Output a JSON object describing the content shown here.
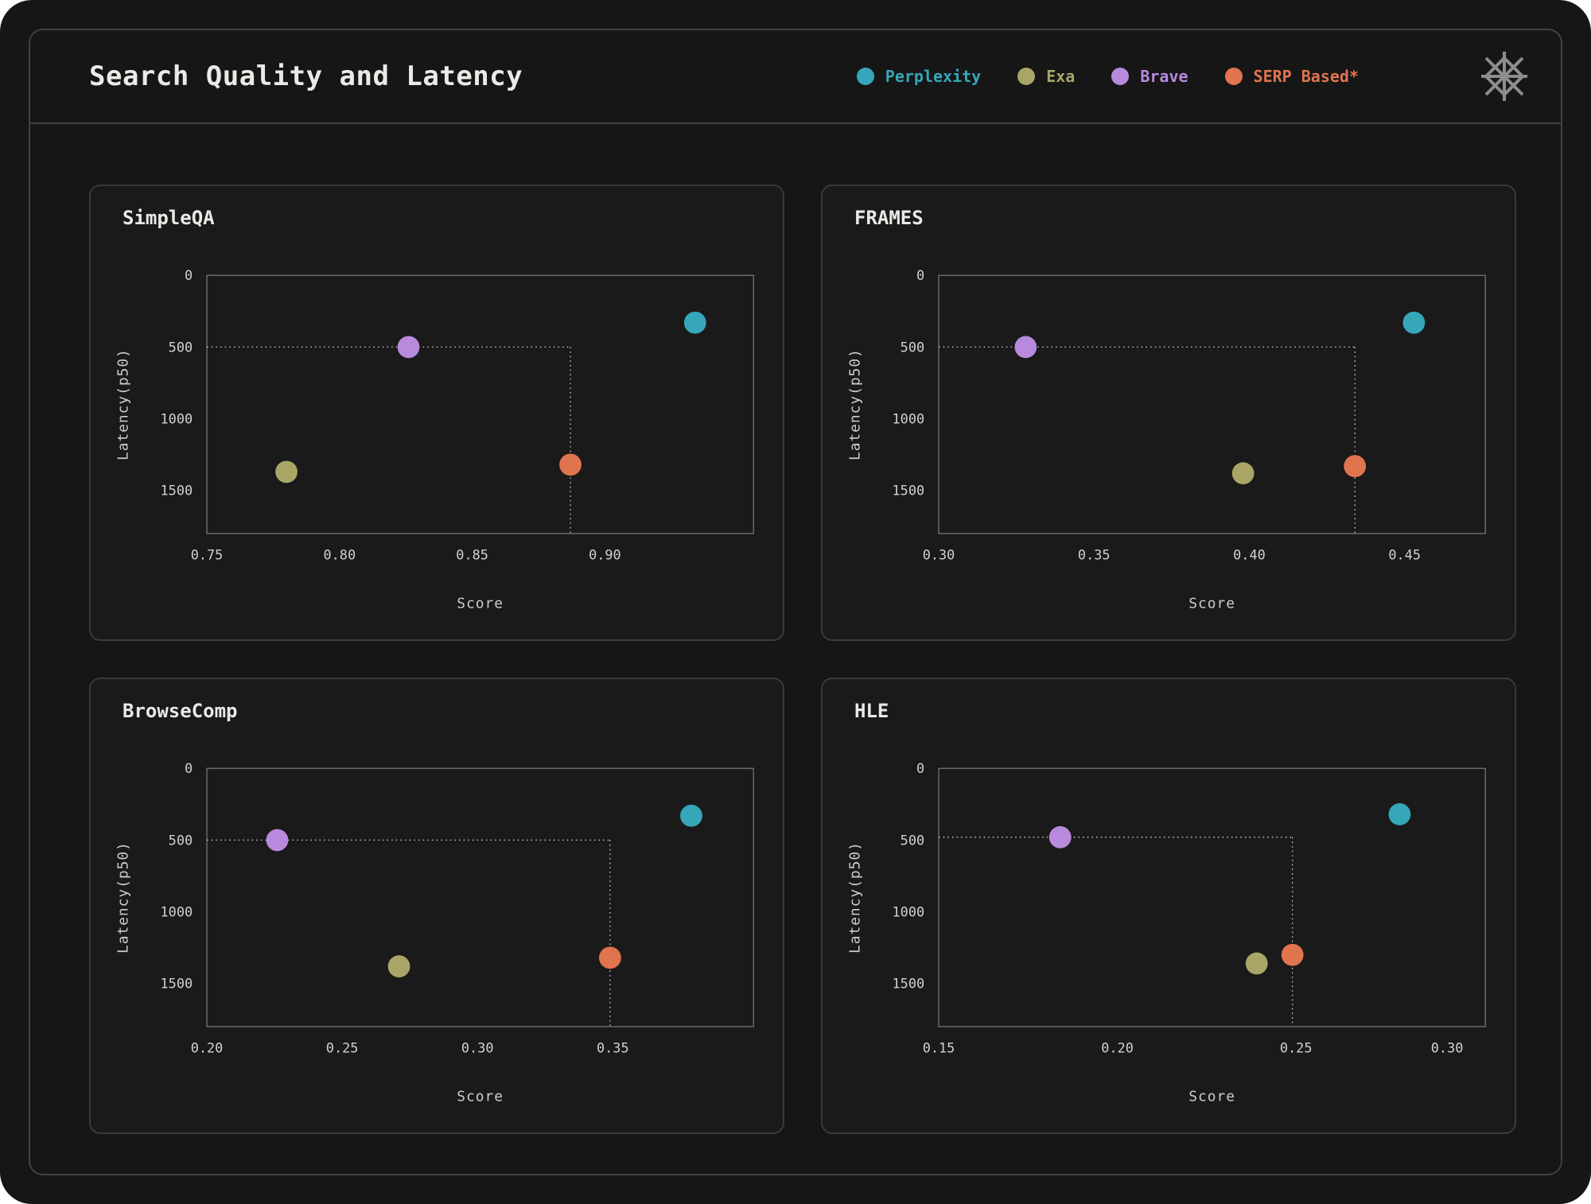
{
  "header": {
    "title": "Search Quality and Latency",
    "legend": [
      {
        "label": "Perplexity",
        "color": "#35a7b8"
      },
      {
        "label": "Exa",
        "color": "#a9a566"
      },
      {
        "label": "Brave",
        "color": "#b88ade"
      },
      {
        "label": "SERP Based*",
        "color": "#e0744f"
      }
    ],
    "logo_icon": "asterisk-burst-icon"
  },
  "colors": {
    "page_background": "#161616",
    "card_background": "#1a1a1a",
    "border": "#414141",
    "text": "#eceae6",
    "tick_text": "#d3d1cd",
    "crosshair": "#e8e8e8"
  },
  "chart_data": [
    {
      "type": "scatter",
      "title": "SimpleQA",
      "xlabel": "Score",
      "ylabel": "Latency(p50)",
      "xlim": [
        0.75,
        0.956
      ],
      "ylim": [
        0,
        1800
      ],
      "y_inverted": true,
      "x_ticks": [
        "0.75",
        "0.80",
        "0.85",
        "0.90"
      ],
      "y_ticks": [
        "0",
        "500",
        "1000",
        "1500"
      ],
      "series": [
        {
          "name": "Perplexity",
          "color": "#35a7b8",
          "points": [
            {
              "x": 0.934,
              "y": 330
            }
          ]
        },
        {
          "name": "Exa",
          "color": "#a9a566",
          "points": [
            {
              "x": 0.78,
              "y": 1370
            }
          ]
        },
        {
          "name": "Brave",
          "color": "#b88ade",
          "points": [
            {
              "x": 0.826,
              "y": 500
            }
          ]
        },
        {
          "name": "SERP Based*",
          "color": "#e0744f",
          "points": [
            {
              "x": 0.887,
              "y": 1320
            }
          ]
        }
      ],
      "crosshair": {
        "h_latency": 500,
        "v_score": 0.887
      },
      "grid": false,
      "legend_position": "header"
    },
    {
      "type": "scatter",
      "title": "FRAMES",
      "xlabel": "Score",
      "ylabel": "Latency(p50)",
      "xlim": [
        0.3,
        0.476
      ],
      "ylim": [
        0,
        1800
      ],
      "y_inverted": true,
      "x_ticks": [
        "0.30",
        "0.35",
        "0.40",
        "0.45"
      ],
      "y_ticks": [
        "0",
        "500",
        "1000",
        "1500"
      ],
      "series": [
        {
          "name": "Perplexity",
          "color": "#35a7b8",
          "points": [
            {
              "x": 0.453,
              "y": 330
            }
          ]
        },
        {
          "name": "Exa",
          "color": "#a9a566",
          "points": [
            {
              "x": 0.398,
              "y": 1380
            }
          ]
        },
        {
          "name": "Brave",
          "color": "#b88ade",
          "points": [
            {
              "x": 0.328,
              "y": 500
            }
          ]
        },
        {
          "name": "SERP Based*",
          "color": "#e0744f",
          "points": [
            {
              "x": 0.434,
              "y": 1330
            }
          ]
        }
      ],
      "crosshair": {
        "h_latency": 500,
        "v_score": 0.434
      },
      "grid": false,
      "legend_position": "header"
    },
    {
      "type": "scatter",
      "title": "BrowseComp",
      "xlabel": "Score",
      "ylabel": "Latency(p50)",
      "xlim": [
        0.2,
        0.402
      ],
      "ylim": [
        0,
        1800
      ],
      "y_inverted": true,
      "x_ticks": [
        "0.20",
        "0.25",
        "0.30",
        "0.35"
      ],
      "y_ticks": [
        "0",
        "500",
        "1000",
        "1500"
      ],
      "series": [
        {
          "name": "Perplexity",
          "color": "#35a7b8",
          "points": [
            {
              "x": 0.379,
              "y": 330
            }
          ]
        },
        {
          "name": "Exa",
          "color": "#a9a566",
          "points": [
            {
              "x": 0.271,
              "y": 1380
            }
          ]
        },
        {
          "name": "Brave",
          "color": "#b88ade",
          "points": [
            {
              "x": 0.226,
              "y": 500
            }
          ]
        },
        {
          "name": "SERP Based*",
          "color": "#e0744f",
          "points": [
            {
              "x": 0.349,
              "y": 1320
            }
          ]
        }
      ],
      "crosshair": {
        "h_latency": 500,
        "v_score": 0.349
      },
      "grid": false,
      "legend_position": "header"
    },
    {
      "type": "scatter",
      "title": "HLE",
      "xlabel": "Score",
      "ylabel": "Latency(p50)",
      "xlim": [
        0.15,
        0.303
      ],
      "ylim": [
        0,
        1800
      ],
      "y_inverted": true,
      "x_ticks": [
        "0.15",
        "0.20",
        "0.25",
        "0.30"
      ],
      "y_ticks": [
        "0",
        "500",
        "1000",
        "1500"
      ],
      "series": [
        {
          "name": "Perplexity",
          "color": "#35a7b8",
          "points": [
            {
              "x": 0.279,
              "y": 320
            }
          ]
        },
        {
          "name": "Exa",
          "color": "#a9a566",
          "points": [
            {
              "x": 0.239,
              "y": 1360
            }
          ]
        },
        {
          "name": "Brave",
          "color": "#b88ade",
          "points": [
            {
              "x": 0.184,
              "y": 480
            }
          ]
        },
        {
          "name": "SERP Based*",
          "color": "#e0744f",
          "points": [
            {
              "x": 0.249,
              "y": 1300
            }
          ]
        }
      ],
      "crosshair": {
        "h_latency": 480,
        "v_score": 0.249
      },
      "grid": false,
      "legend_position": "header"
    }
  ]
}
